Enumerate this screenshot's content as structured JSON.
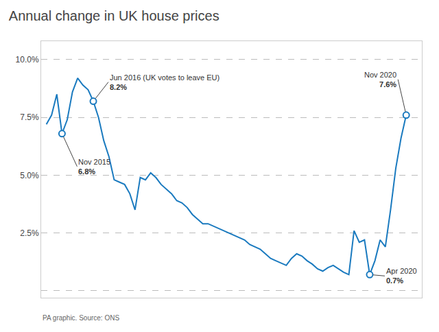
{
  "chart_data": {
    "type": "line",
    "title": "Annual change in UK house prices",
    "source": "PA graphic. Source: ONS",
    "x": [
      0,
      1,
      2,
      3,
      4,
      5,
      6,
      7,
      8,
      9,
      10,
      11,
      12,
      13,
      14,
      15,
      16,
      17,
      18,
      19,
      20,
      21,
      22,
      23,
      24,
      25,
      26,
      27,
      28,
      29,
      30,
      31,
      32,
      33,
      34,
      35,
      36,
      37,
      38,
      39,
      40,
      41,
      42,
      43,
      44,
      45,
      46,
      47,
      48,
      49,
      50,
      51,
      52,
      53,
      54,
      55,
      56,
      57,
      58,
      59,
      60,
      61,
      62,
      63,
      64,
      65,
      66,
      67,
      68,
      69
    ],
    "values": [
      7.2,
      7.6,
      8.5,
      6.8,
      7.4,
      8.6,
      9.2,
      8.9,
      8.7,
      8.2,
      7.5,
      6.5,
      5.8,
      4.8,
      4.7,
      4.6,
      4.2,
      3.5,
      4.9,
      4.8,
      5.1,
      4.9,
      4.6,
      4.4,
      4.2,
      3.9,
      3.8,
      3.6,
      3.3,
      3.1,
      2.9,
      2.9,
      2.8,
      2.7,
      2.6,
      2.5,
      2.4,
      2.3,
      2.2,
      2.0,
      1.9,
      1.8,
      1.6,
      1.4,
      1.3,
      1.2,
      1.1,
      1.4,
      1.6,
      1.5,
      1.3,
      1.15,
      0.95,
      0.85,
      1.0,
      1.1,
      0.95,
      0.8,
      0.7,
      2.6,
      2.1,
      2.2,
      0.7,
      1.3,
      2.2,
      1.9,
      3.5,
      5.3,
      6.6,
      7.6
    ],
    "color": "#1a7abf",
    "xlim": [
      -1,
      72
    ],
    "ylim": [
      -0.3,
      10.8
    ],
    "yticks": [
      {
        "value": 0.0,
        "label": null
      },
      {
        "value": 2.5,
        "label": "2.5%"
      },
      {
        "value": 5.0,
        "label": "5.0%"
      },
      {
        "value": 7.5,
        "label": "7.5%"
      },
      {
        "value": 10.0,
        "label": "10.0%"
      }
    ],
    "grid": true,
    "tick_labels": "y",
    "annotations": [
      {
        "x": 3,
        "y": 6.8,
        "text": "Nov 2015",
        "value_label": "6.8%"
      },
      {
        "x": 9,
        "y": 8.2,
        "text": "Jun 2016 (UK votes to leave EU)",
        "value_label": "8.2%"
      },
      {
        "x": 62,
        "y": 0.7,
        "text": "Apr 2020",
        "value_label": "0.7%"
      },
      {
        "x": 69,
        "y": 7.6,
        "text": "Nov 2020",
        "value_label": "7.6%"
      }
    ]
  }
}
